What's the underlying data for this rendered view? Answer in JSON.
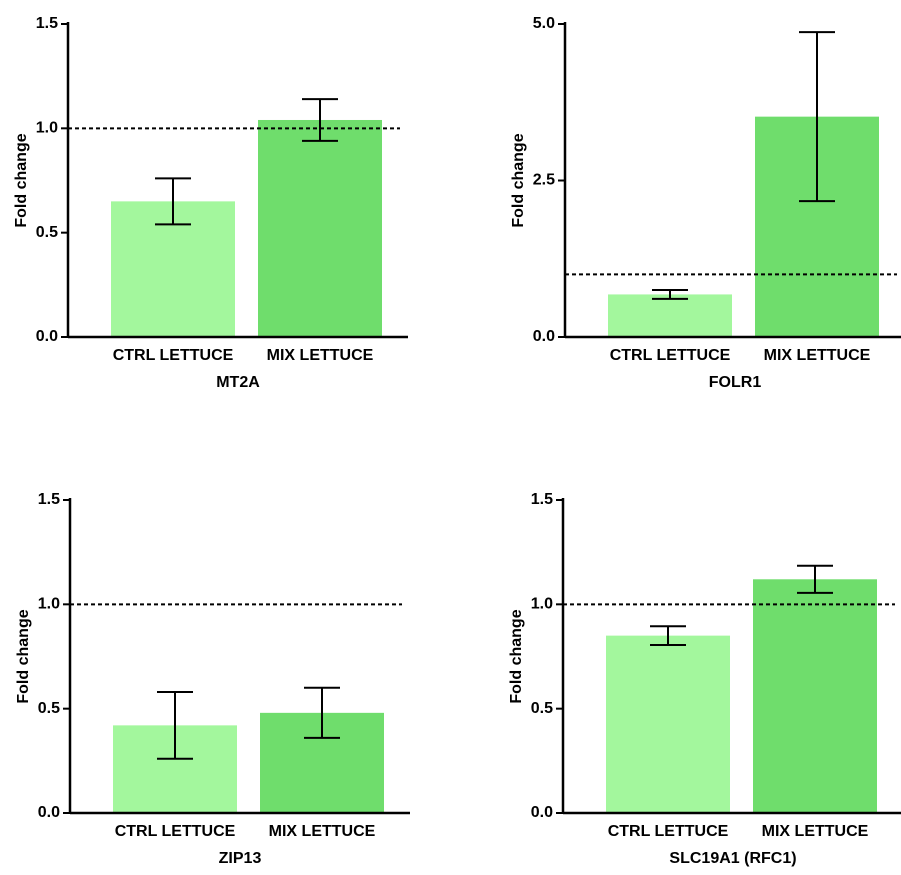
{
  "chart_data": [
    {
      "type": "bar",
      "title": "MT2A",
      "y_label": "Fold change",
      "categories": [
        "CTRL LETTUCE",
        "MIX LETTUCE"
      ],
      "values": [
        0.65,
        1.04
      ],
      "errors": [
        0.11,
        0.1
      ],
      "colors": [
        "#a3f79d",
        "#6fdd6c"
      ],
      "ylim": [
        0,
        1.5
      ],
      "yticks": [
        {
          "value": 0,
          "label": "0.0"
        },
        {
          "value": 0.5,
          "label": "0.5"
        },
        {
          "value": 1,
          "label": "1.0"
        },
        {
          "value": 1.5,
          "label": "1.5"
        }
      ],
      "reference_line": 1
    },
    {
      "type": "bar",
      "title": "FOLR1",
      "y_label": "Fold change",
      "categories": [
        "CTRL LETTUCE",
        "MIX LETTUCE"
      ],
      "values": [
        0.68,
        3.52
      ],
      "errors": [
        0.07,
        1.35
      ],
      "colors": [
        "#a3f79d",
        "#6fdd6c"
      ],
      "ylim": [
        0,
        5
      ],
      "yticks": [
        {
          "value": 0,
          "label": "0.0"
        },
        {
          "value": 2.5,
          "label": "2.5"
        },
        {
          "value": 5,
          "label": "5.0"
        }
      ],
      "reference_line": 1
    },
    {
      "type": "bar",
      "title": "ZIP13",
      "y_label": "Fold change",
      "categories": [
        "CTRL LETTUCE",
        "MIX LETTUCE"
      ],
      "values": [
        0.42,
        0.48
      ],
      "errors": [
        0.16,
        0.12
      ],
      "colors": [
        "#a3f79d",
        "#6fdd6c"
      ],
      "ylim": [
        0,
        1.5
      ],
      "yticks": [
        {
          "value": 0,
          "label": "0.0"
        },
        {
          "value": 0.5,
          "label": "0.5"
        },
        {
          "value": 1,
          "label": "1.0"
        },
        {
          "value": 1.5,
          "label": "1.5"
        }
      ],
      "reference_line": 1
    },
    {
      "type": "bar",
      "title": "SLC19A1 (RFC1)",
      "y_label": "Fold change",
      "categories": [
        "CTRL LETTUCE",
        "MIX LETTUCE"
      ],
      "values": [
        0.85,
        1.12
      ],
      "errors": [
        0.045,
        0.065
      ],
      "colors": [
        "#a3f79d",
        "#6fdd6c"
      ],
      "ylim": [
        0,
        1.5
      ],
      "yticks": [
        {
          "value": 0,
          "label": "0.0"
        },
        {
          "value": 0.5,
          "label": "0.5"
        },
        {
          "value": 1,
          "label": "1.0"
        },
        {
          "value": 1.5,
          "label": "1.5"
        }
      ],
      "reference_line": 1
    }
  ]
}
